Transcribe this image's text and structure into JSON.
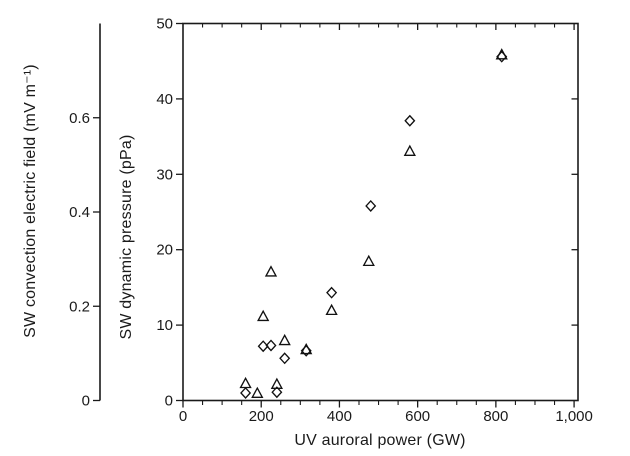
{
  "figure": {
    "background_color": "#ffffff",
    "axis_color": "#1a1a1a",
    "marker_color": "#111111"
  },
  "chart_data": {
    "type": "scatter",
    "title": "",
    "xlabel": "UV auroral power (GW)",
    "x_axis": {
      "tick_labels": [
        "0",
        "200",
        "400",
        "600",
        "800",
        "1,000"
      ],
      "tick_values": [
        0,
        200,
        400,
        600,
        800,
        1000
      ],
      "minor_tick_step": 50,
      "lim": [
        0,
        1010
      ]
    },
    "y_axis_inner": {
      "label": "SW dynamic pressure (pPa)",
      "tick_labels": [
        "0",
        "10",
        "20",
        "30",
        "40",
        "50"
      ],
      "tick_values": [
        0,
        10,
        20,
        30,
        40,
        50
      ],
      "lim": [
        0,
        50
      ]
    },
    "y_axis_outer": {
      "label": "SW convection electric field (mV m⁻¹)",
      "tick_labels": [
        "0",
        "0.2",
        "0.4",
        "0.6"
      ],
      "tick_values": [
        0,
        0.2,
        0.4,
        0.6
      ],
      "lim": [
        0,
        0.8
      ]
    },
    "grid": false,
    "legend": "none",
    "series": [
      {
        "name": "diamond-series",
        "marker": "diamond",
        "points": [
          [
            160,
            1.0
          ],
          [
            205,
            7.2
          ],
          [
            225,
            7.3
          ],
          [
            240,
            1.1
          ],
          [
            260,
            5.6
          ],
          [
            315,
            6.6
          ],
          [
            380,
            14.3
          ],
          [
            480,
            25.8
          ],
          [
            580,
            37.1
          ],
          [
            815,
            45.6
          ]
        ]
      },
      {
        "name": "triangle-series",
        "marker": "triangle",
        "points": [
          [
            160,
            2.2
          ],
          [
            190,
            0.9
          ],
          [
            205,
            11.1
          ],
          [
            225,
            17.0
          ],
          [
            240,
            2.1
          ],
          [
            260,
            7.9
          ],
          [
            315,
            6.7
          ],
          [
            380,
            11.9
          ],
          [
            475,
            18.4
          ],
          [
            580,
            33.0
          ],
          [
            815,
            45.8
          ]
        ]
      }
    ]
  }
}
